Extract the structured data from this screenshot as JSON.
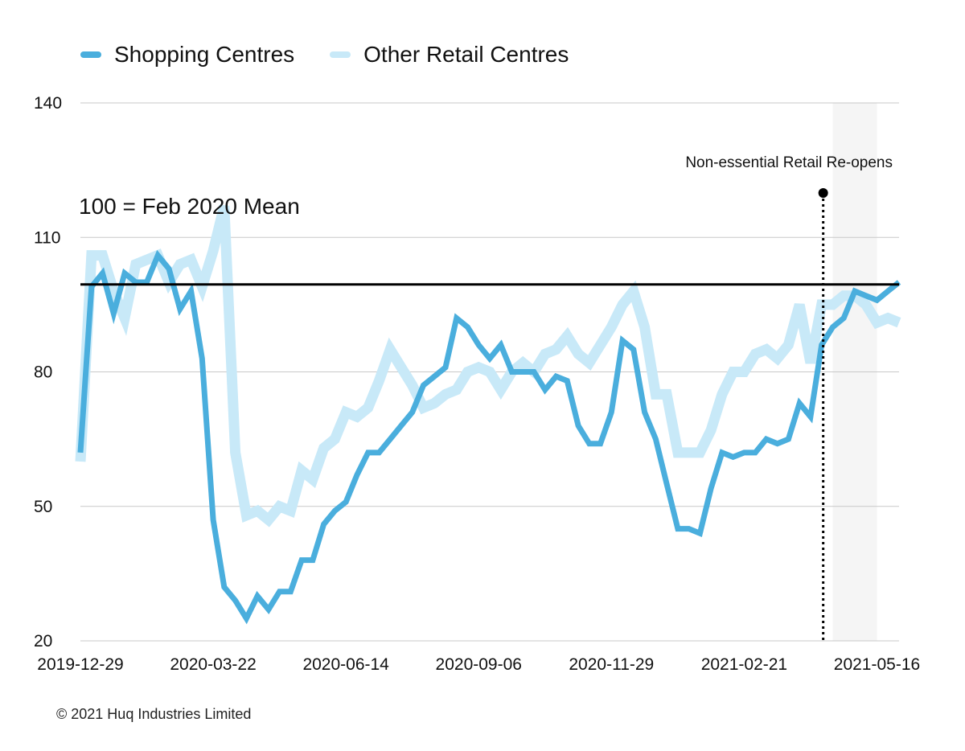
{
  "chart_data": {
    "type": "line",
    "title": "",
    "xlabel": "",
    "ylabel": "",
    "ylim": [
      20,
      140
    ],
    "yticks": [
      20,
      50,
      80,
      110,
      140
    ],
    "x_tick_labels": [
      "2019-12-29",
      "2020-03-22",
      "2020-06-14",
      "2020-09-06",
      "2020-11-29",
      "2021-02-21",
      "2021-05-16"
    ],
    "x_start": "2019-12-29",
    "x_interval_days": 7,
    "grid": "horizontal",
    "legend_position": "top-left",
    "reference_line": {
      "value": 99.5,
      "label": "100 = Feb 2020 Mean"
    },
    "event": {
      "date": "2021-04-12",
      "label": "Non-essential Retail Re-opens"
    },
    "shaded_region": {
      "from": "2021-04-18",
      "to": "2021-05-16"
    },
    "series": [
      {
        "name": "Shopping Centres",
        "color": "#4aaedd",
        "values": [
          62,
          99,
          102,
          93,
          102,
          100,
          100,
          106,
          103,
          94,
          98,
          83,
          47,
          32,
          29,
          25,
          30,
          27,
          31,
          31,
          38,
          38,
          46,
          49,
          51,
          57,
          62,
          62,
          65,
          68,
          71,
          77,
          79,
          81,
          92,
          90,
          86,
          83,
          86,
          80,
          80,
          80,
          76,
          79,
          78,
          68,
          64,
          64,
          71,
          87,
          85,
          71,
          65,
          55,
          45,
          45,
          44,
          54,
          62,
          61,
          62,
          62,
          65,
          64,
          65,
          73,
          70,
          86,
          90,
          92,
          98,
          97,
          96,
          98,
          100
        ]
      },
      {
        "name": "Other Retail Centres",
        "color": "#c8e9f8",
        "values": [
          60,
          106,
          106,
          98,
          92,
          104,
          105,
          106,
          100,
          104,
          105,
          99,
          107,
          117,
          62,
          48,
          49,
          47,
          50,
          49,
          58,
          56,
          63,
          65,
          71,
          70,
          72,
          78,
          85,
          81,
          77,
          72,
          73,
          75,
          76,
          80,
          81,
          80,
          76,
          80,
          82,
          80,
          84,
          85,
          88,
          84,
          82,
          86,
          90,
          95,
          98,
          90,
          75,
          75,
          62,
          62,
          62,
          67,
          75,
          80,
          80,
          84,
          85,
          83,
          86,
          95,
          82,
          95,
          95,
          97,
          97,
          95,
          91,
          92,
          91
        ]
      }
    ]
  },
  "footer": {
    "copyright": "© 2021 Huq Industries Limited"
  }
}
